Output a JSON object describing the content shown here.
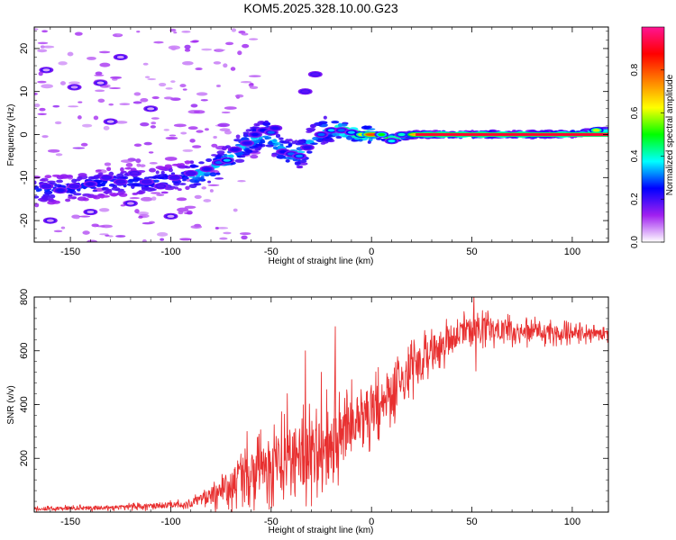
{
  "figure": {
    "title": "KOM5.2025.328.10.00.G23"
  },
  "chart_data": [
    {
      "type": "heatmap",
      "name": "spectrogram",
      "title": "KOM5.2025.328.10.00.G23",
      "xlabel": "Height of straight line (km)",
      "ylabel": "Frequency (Hz)",
      "xlim": [
        -168,
        118
      ],
      "ylim": [
        -25,
        25
      ],
      "xticks": [
        -150,
        -100,
        -50,
        0,
        50,
        100
      ],
      "yticks": [
        -20,
        -10,
        0,
        10,
        20
      ],
      "ridge": {
        "x": [
          -165,
          -150,
          -130,
          -110,
          -95,
          -85,
          -75,
          -65,
          -58,
          -52,
          -48,
          -44,
          -40,
          -36,
          -32,
          -28,
          -24,
          -20,
          -15,
          -10,
          -5,
          0,
          10,
          20,
          40,
          60,
          80,
          100,
          118
        ],
        "y": [
          -13,
          -12.5,
          -11,
          -11,
          -10,
          -9,
          -7,
          -3,
          -1,
          0.5,
          -2,
          -4,
          -4.5,
          -4.5,
          -3,
          0,
          1,
          1.5,
          1,
          0.5,
          0,
          0,
          -1,
          0,
          0,
          0,
          0,
          0.2,
          1
        ]
      },
      "blobs": [
        {
          "x": -162,
          "y": -12,
          "v": 0.2
        },
        {
          "x": -155,
          "y": -13,
          "v": 0.22
        },
        {
          "x": -148,
          "y": -12,
          "v": 0.2
        },
        {
          "x": -140,
          "y": -11.5,
          "v": 0.22
        },
        {
          "x": -132,
          "y": -10,
          "v": 0.2
        },
        {
          "x": -125,
          "y": -11,
          "v": 0.2
        },
        {
          "x": -118,
          "y": -9,
          "v": 0.18
        },
        {
          "x": -112,
          "y": -11,
          "v": 0.2
        },
        {
          "x": -105,
          "y": -12,
          "v": 0.18
        },
        {
          "x": -98,
          "y": -10,
          "v": 0.2
        },
        {
          "x": -90,
          "y": -9,
          "v": 0.2
        },
        {
          "x": -82,
          "y": -8,
          "v": 0.22
        },
        {
          "x": -76,
          "y": -6.5,
          "v": 0.3
        },
        {
          "x": -72,
          "y": -6,
          "v": 0.35
        },
        {
          "x": -68,
          "y": -3.5,
          "v": 0.22
        },
        {
          "x": -62,
          "y": -2,
          "v": 0.22
        },
        {
          "x": -58,
          "y": 0,
          "v": 0.24
        },
        {
          "x": -54,
          "y": 1,
          "v": 0.25
        },
        {
          "x": -50,
          "y": 0.5,
          "v": 0.3
        },
        {
          "x": -48,
          "y": 1.5,
          "v": 0.22
        },
        {
          "x": -44,
          "y": -4,
          "v": 0.24
        },
        {
          "x": -40,
          "y": -4.5,
          "v": 0.3
        },
        {
          "x": -36,
          "y": -5,
          "v": 0.32
        },
        {
          "x": -32,
          "y": -3,
          "v": 0.22
        },
        {
          "x": -33,
          "y": 10,
          "v": 0.18
        },
        {
          "x": -28,
          "y": 14,
          "v": 0.18
        },
        {
          "x": -25,
          "y": 0,
          "v": 0.3
        },
        {
          "x": -20,
          "y": 1,
          "v": 0.35
        },
        {
          "x": -15,
          "y": 1,
          "v": 0.3
        },
        {
          "x": -10,
          "y": 0.5,
          "v": 0.35
        },
        {
          "x": -5,
          "y": 0,
          "v": 0.6
        },
        {
          "x": 0,
          "y": 0,
          "v": 0.8
        },
        {
          "x": 5,
          "y": 0,
          "v": 0.5
        },
        {
          "x": 10,
          "y": -1.5,
          "v": 0.38
        },
        {
          "x": 15,
          "y": 0,
          "v": 0.4
        },
        {
          "x": 22,
          "y": 0,
          "v": 0.7
        },
        {
          "x": 28,
          "y": 0,
          "v": 0.85
        },
        {
          "x": 35,
          "y": 0,
          "v": 0.98
        },
        {
          "x": 45,
          "y": 0,
          "v": 0.95
        },
        {
          "x": 55,
          "y": 0,
          "v": 0.98
        },
        {
          "x": 65,
          "y": 0,
          "v": 0.95
        },
        {
          "x": 75,
          "y": 0,
          "v": 0.98
        },
        {
          "x": 85,
          "y": 0,
          "v": 0.55
        },
        {
          "x": 95,
          "y": 0,
          "v": 0.95
        },
        {
          "x": 105,
          "y": 0.2,
          "v": 0.5
        },
        {
          "x": 112,
          "y": 1,
          "v": 0.6
        },
        {
          "x": -162,
          "y": 15,
          "v": 0.05
        },
        {
          "x": -148,
          "y": 11,
          "v": 0.06
        },
        {
          "x": -135,
          "y": 12,
          "v": 0.05
        },
        {
          "x": -125,
          "y": 18,
          "v": 0.06
        },
        {
          "x": -160,
          "y": -20,
          "v": 0.06
        },
        {
          "x": -140,
          "y": -18,
          "v": 0.05
        },
        {
          "x": -120,
          "y": -16,
          "v": 0.06
        },
        {
          "x": -100,
          "y": -19,
          "v": 0.05
        },
        {
          "x": -130,
          "y": 3,
          "v": 0.05
        },
        {
          "x": -110,
          "y": 6,
          "v": 0.05
        }
      ],
      "colorbar": {
        "label": "Normalized spectral amplitude",
        "range": [
          0,
          1
        ],
        "ticks": [
          "0.0",
          "0.2",
          "0.4",
          "0.6",
          "0.8"
        ],
        "colormap": [
          "#ffffff",
          "#a020f0",
          "#0000ff",
          "#00ffff",
          "#00ff00",
          "#ffff00",
          "#ff8000",
          "#ff0000",
          "#ff1493"
        ]
      }
    },
    {
      "type": "line",
      "name": "snr",
      "xlabel": "Height of straight line (km)",
      "ylabel": "SNR (v/v)",
      "xlim": [
        -168,
        118
      ],
      "ylim": [
        0,
        800
      ],
      "xticks": [
        -150,
        -100,
        -50,
        0,
        50,
        100
      ],
      "yticks": [
        200,
        400,
        600,
        800
      ],
      "color": "#e83030",
      "trend": {
        "x": [
          -168,
          -120,
          -90,
          -80,
          -70,
          -60,
          -50,
          -40,
          -30,
          -20,
          -15,
          -10,
          0,
          10,
          20,
          30,
          40,
          50,
          60,
          80,
          100,
          118
        ],
        "y": [
          12,
          18,
          30,
          60,
          100,
          140,
          180,
          200,
          220,
          240,
          300,
          340,
          380,
          440,
          520,
          600,
          640,
          680,
          680,
          670,
          665,
          660
        ]
      },
      "noise": {
        "x": [
          -168,
          -90,
          -80,
          -50,
          -30,
          -18,
          -15,
          0,
          20,
          40,
          118
        ],
        "amp": [
          10,
          20,
          60,
          180,
          220,
          260,
          150,
          160,
          120,
          90,
          30
        ]
      },
      "spikes": [
        {
          "x": -33,
          "y": 600
        },
        {
          "x": -18,
          "y": 690
        },
        {
          "x": -42,
          "y": 440
        },
        {
          "x": -25,
          "y": 520
        },
        {
          "x": 51,
          "y": 810
        },
        {
          "x": 52,
          "y": 525
        },
        {
          "x": -62,
          "y": 300
        }
      ]
    }
  ]
}
